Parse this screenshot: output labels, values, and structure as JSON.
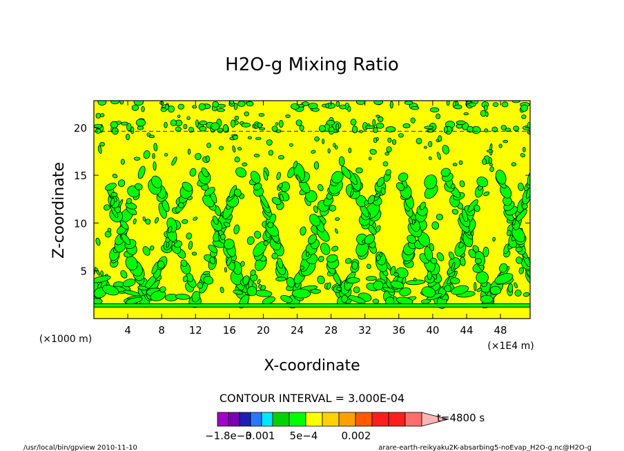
{
  "chart_data": {
    "type": "heatmap",
    "title": "H2O-g Mixing Ratio",
    "xlabel": "X-coordinate",
    "ylabel": "Z-coordinate",
    "x_unit_left": "(×1000 m)",
    "x_unit_right": "(×1E4 m)",
    "xlim": [
      0,
      51.5
    ],
    "ylim": [
      0,
      22.8
    ],
    "x_ticks": [
      4,
      8,
      12,
      16,
      20,
      24,
      28,
      32,
      36,
      40,
      44,
      48
    ],
    "y_ticks": [
      5,
      10,
      15,
      20
    ],
    "grid": false,
    "contour_interval_text": "CONTOUR INTERVAL = 3.000E-04",
    "time_text": "t=4800 s",
    "colorbar": {
      "colors": [
        "#a000c8",
        "#7800b4",
        "#1e1eb4",
        "#2878ff",
        "#00e6ff",
        "#00d200",
        "#00ff00",
        "#ffff00",
        "#ffd200",
        "#ffa000",
        "#ff5a00",
        "#ff1e1e",
        "#ff1e1e",
        "#ff6e6e",
        "#ffb4b4"
      ],
      "labels": [
        "−1.8e−3",
        "0.001",
        "5e−4",
        "0.002"
      ]
    },
    "field_levels": {
      "background": "#ffff00",
      "patches": "#00ff00",
      "contour_line": "#000000"
    }
  },
  "footer": {
    "left": "/usr/local/bin/gpview  2010-11-10",
    "right": "arare-earth-reikyaku2K-absarbing5-noEvap_H2O-g.nc@H2O-g"
  }
}
